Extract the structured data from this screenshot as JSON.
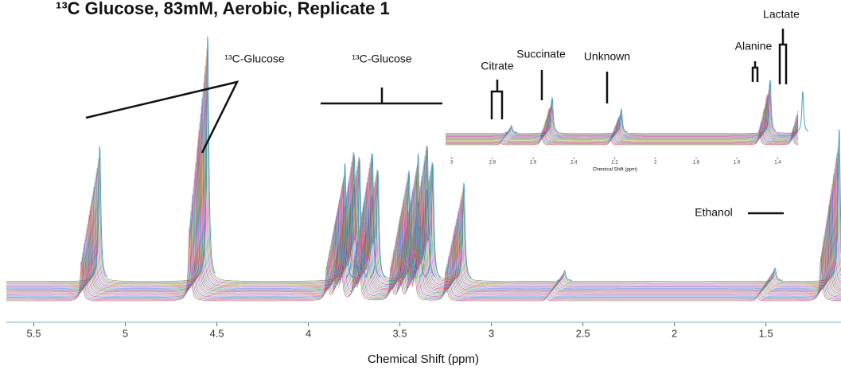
{
  "chart_data": [
    {
      "type": "spectrum",
      "title": "¹³C Glucose, 83mM, Aerobic, Replicate 1",
      "xlabel": "Chemical Shift (ppm)",
      "x": [
        5.24,
        4.65,
        3.9,
        3.85,
        3.82,
        3.75,
        3.72,
        3.55,
        3.5,
        3.45,
        3.42,
        3.25,
        2.7,
        1.55,
        1.2
      ],
      "values": [
        55,
        100,
        48,
        52,
        50,
        52,
        45,
        45,
        52,
        55,
        48,
        40,
        4,
        5,
        62
      ],
      "xlim": [
        5.65,
        1.09
      ],
      "xticks": [
        5.5,
        5,
        4.5,
        4,
        3.5,
        3,
        2.5,
        2,
        1.5
      ],
      "annotations": [
        "¹³C-Glucose",
        "¹³C-Glucose",
        "Ethanol"
      ]
    },
    {
      "type": "spectrum",
      "xlabel": "Chemical Shift (ppm)",
      "x": [
        2.76,
        2.56,
        2.22,
        1.49,
        1.33
      ],
      "values": [
        6,
        30,
        20,
        45,
        35
      ],
      "xlim": [
        3.03,
        1.3
      ],
      "xticks": [
        3,
        2.8,
        2.6,
        2.4,
        2.2,
        2,
        1.8,
        1.6,
        1.4
      ],
      "annotations": [
        "Citrate",
        "Succinate",
        "Unknown",
        "Alanine",
        "Lactate"
      ]
    }
  ]
}
